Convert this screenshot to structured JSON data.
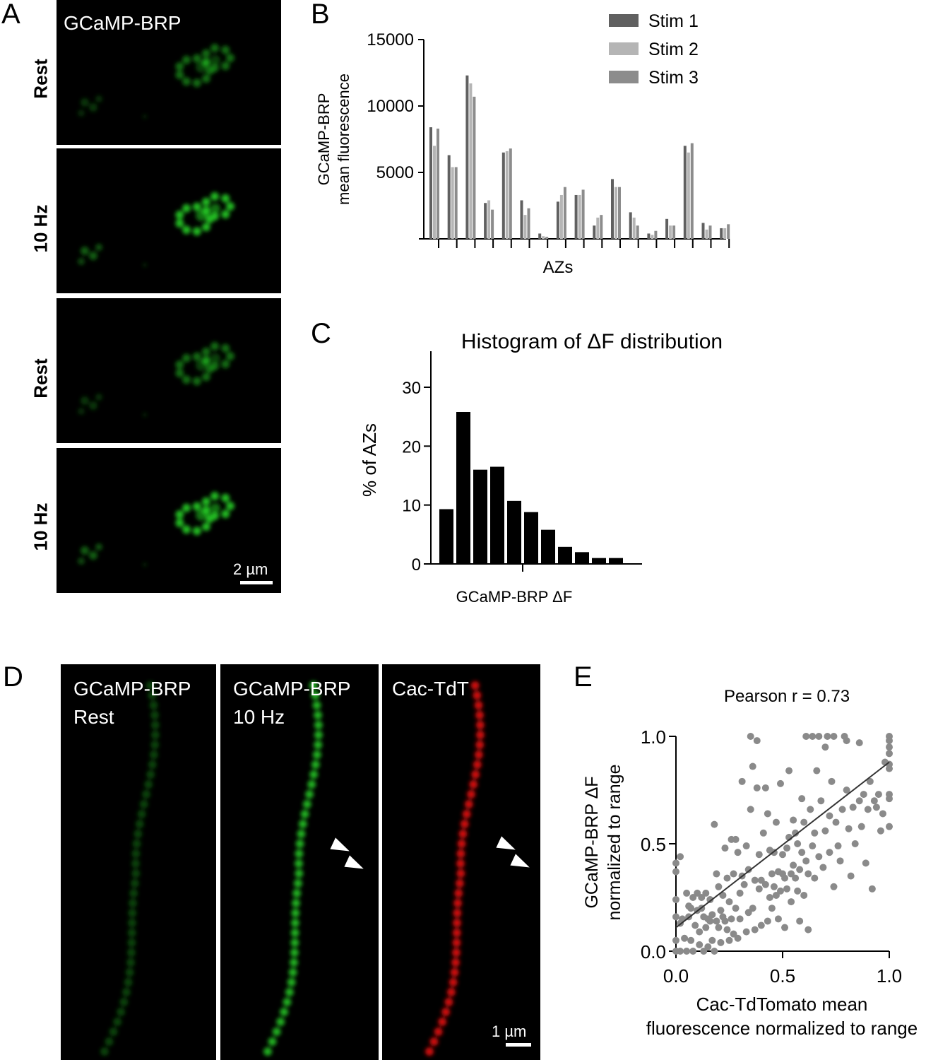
{
  "panelA": {
    "letter": "A",
    "header": "GCaMP-BRP",
    "rows": [
      "Rest",
      "10 Hz",
      "Rest",
      "10 Hz"
    ],
    "scale": "2 µm"
  },
  "panelD": {
    "letter": "D",
    "images": [
      {
        "line1": "GCaMP-BRP",
        "line2": "Rest"
      },
      {
        "line1": "GCaMP-BRP",
        "line2": "10 Hz"
      },
      {
        "line1": "Cac-TdT",
        "line2": ""
      }
    ],
    "scale": "1 µm"
  },
  "colors": {
    "green": "#22c322",
    "red": "#e01010",
    "scatter": "#8a8a8a"
  },
  "chart_data": [
    {
      "panel": "B",
      "type": "bar",
      "title": "",
      "xlabel": "AZs",
      "ylabel": [
        "GCaMP-BRP",
        "mean fluorescence"
      ],
      "ylim": [
        0,
        15000
      ],
      "yticks": [
        5000,
        10000,
        15000
      ],
      "legend_position": "top-right",
      "series": [
        {
          "name": "Stim 1",
          "color": "#606060",
          "values": [
            8400,
            6300,
            12300,
            2700,
            6500,
            2900,
            400,
            2800,
            3300,
            1000,
            4500,
            2000,
            400,
            1500,
            7000,
            1200,
            800
          ]
        },
        {
          "name": "Stim 2",
          "color": "#b5b5b5",
          "values": [
            7000,
            5400,
            11700,
            2900,
            6600,
            1800,
            200,
            3300,
            3300,
            1600,
            3900,
            1600,
            300,
            1000,
            6500,
            700,
            800
          ]
        },
        {
          "name": "Stim 3",
          "color": "#8c8c8c",
          "values": [
            8300,
            5400,
            10700,
            2200,
            6800,
            2300,
            150,
            3900,
            3700,
            1800,
            3900,
            1000,
            600,
            1000,
            7200,
            1000,
            1100
          ]
        }
      ]
    },
    {
      "panel": "C",
      "type": "bar",
      "title": "Histogram of ΔF distribution",
      "xlabel": "GCaMP-BRP ΔF",
      "ylabel": "% of AZs",
      "ylim": [
        0,
        36
      ],
      "yticks": [
        0,
        10,
        20,
        30
      ],
      "values": [
        9.3,
        25.8,
        16.0,
        16.5,
        10.7,
        8.8,
        5.8,
        2.9,
        2.0,
        1.0,
        1.0
      ]
    },
    {
      "panel": "E",
      "type": "scatter",
      "title": "Pearson r = 0.73",
      "xlabel": [
        "Cac-TdTomato mean",
        "fluorescence normalized to range"
      ],
      "ylabel": [
        "GCaMP-BRP  ΔF",
        "normalized to range"
      ],
      "xlim": [
        0,
        1
      ],
      "ylim": [
        0,
        1
      ],
      "xticks": [
        "0.0",
        "0.5",
        "1.0"
      ],
      "yticks": [
        "0.0",
        "0.5",
        "1.0"
      ],
      "fit_line": {
        "x": [
          0,
          1
        ],
        "y": [
          0.11,
          0.88
        ]
      },
      "points": [
        [
          0.0,
          0.0
        ],
        [
          0.0,
          0.05
        ],
        [
          0.0,
          0.16
        ],
        [
          0.0,
          0.24
        ],
        [
          0.0,
          0.37
        ],
        [
          0.0,
          0.41
        ],
        [
          0.02,
          0.0
        ],
        [
          0.02,
          0.13
        ],
        [
          0.02,
          0.44
        ],
        [
          0.03,
          0.15
        ],
        [
          0.04,
          0.06
        ],
        [
          0.05,
          0.0
        ],
        [
          0.05,
          0.27
        ],
        [
          0.06,
          0.21
        ],
        [
          0.06,
          0.16
        ],
        [
          0.07,
          0.2
        ],
        [
          0.07,
          0.05
        ],
        [
          0.08,
          0.0
        ],
        [
          0.08,
          0.25
        ],
        [
          0.09,
          0.12
        ],
        [
          0.1,
          0.19
        ],
        [
          0.1,
          0.27
        ],
        [
          0.11,
          0.03
        ],
        [
          0.11,
          0.09
        ],
        [
          0.12,
          0.2
        ],
        [
          0.12,
          0.25
        ],
        [
          0.13,
          0.0
        ],
        [
          0.13,
          0.16
        ],
        [
          0.14,
          0.11
        ],
        [
          0.14,
          0.27
        ],
        [
          0.15,
          0.02
        ],
        [
          0.15,
          0.15
        ],
        [
          0.16,
          0.14
        ],
        [
          0.16,
          0.24
        ],
        [
          0.17,
          0.05
        ],
        [
          0.17,
          0.17
        ],
        [
          0.18,
          0.59
        ],
        [
          0.18,
          0.0
        ],
        [
          0.19,
          0.14
        ],
        [
          0.19,
          0.36
        ],
        [
          0.2,
          0.11
        ],
        [
          0.2,
          0.3
        ],
        [
          0.21,
          0.19
        ],
        [
          0.21,
          0.04
        ],
        [
          0.22,
          0.16
        ],
        [
          0.22,
          0.26
        ],
        [
          0.23,
          0.14
        ],
        [
          0.23,
          0.48
        ],
        [
          0.24,
          0.1
        ],
        [
          0.24,
          0.34
        ],
        [
          0.25,
          0.05
        ],
        [
          0.25,
          0.23
        ],
        [
          0.26,
          0.15
        ],
        [
          0.26,
          0.52
        ],
        [
          0.27,
          0.08
        ],
        [
          0.27,
          0.36
        ],
        [
          0.28,
          0.2
        ],
        [
          0.28,
          0.52
        ],
        [
          0.29,
          0.06
        ],
        [
          0.29,
          0.46
        ],
        [
          0.3,
          0.27
        ],
        [
          0.3,
          0.15
        ],
        [
          0.31,
          0.79
        ],
        [
          0.31,
          0.35
        ],
        [
          0.32,
          0.31
        ],
        [
          0.33,
          0.49
        ],
        [
          0.33,
          0.09
        ],
        [
          0.34,
          0.38
        ],
        [
          0.34,
          0.18
        ],
        [
          0.35,
          1.0
        ],
        [
          0.35,
          0.66
        ],
        [
          0.36,
          0.86
        ],
        [
          0.36,
          0.2
        ],
        [
          0.37,
          0.33
        ],
        [
          0.37,
          0.1
        ],
        [
          0.38,
          0.98
        ],
        [
          0.38,
          0.76
        ],
        [
          0.39,
          0.29
        ],
        [
          0.39,
          0.45
        ],
        [
          0.4,
          0.33
        ],
        [
          0.4,
          0.12
        ],
        [
          0.41,
          0.55
        ],
        [
          0.42,
          0.76
        ],
        [
          0.42,
          0.31
        ],
        [
          0.43,
          0.14
        ],
        [
          0.43,
          0.64
        ],
        [
          0.44,
          0.47
        ],
        [
          0.44,
          0.25
        ],
        [
          0.45,
          0.36
        ],
        [
          0.45,
          0.2
        ],
        [
          0.46,
          0.3
        ],
        [
          0.46,
          0.46
        ],
        [
          0.47,
          0.26
        ],
        [
          0.47,
          0.6
        ],
        [
          0.48,
          0.37
        ],
        [
          0.48,
          0.15
        ],
        [
          0.49,
          0.78
        ],
        [
          0.49,
          0.28
        ],
        [
          0.5,
          0.36
        ],
        [
          0.5,
          0.45
        ],
        [
          0.51,
          0.34
        ],
        [
          0.51,
          0.11
        ],
        [
          0.52,
          0.48
        ],
        [
          0.52,
          0.29
        ],
        [
          0.53,
          0.84
        ],
        [
          0.53,
          0.53
        ],
        [
          0.54,
          0.36
        ],
        [
          0.54,
          0.23
        ],
        [
          0.55,
          0.61
        ],
        [
          0.55,
          0.4
        ],
        [
          0.56,
          0.34
        ],
        [
          0.56,
          0.55
        ],
        [
          0.57,
          0.5
        ],
        [
          0.57,
          0.28
        ],
        [
          0.58,
          0.38
        ],
        [
          0.58,
          0.14
        ],
        [
          0.59,
          0.71
        ],
        [
          0.59,
          0.46
        ],
        [
          0.6,
          0.6
        ],
        [
          0.6,
          0.26
        ],
        [
          0.61,
          1.0
        ],
        [
          0.61,
          0.42
        ],
        [
          0.62,
          0.36
        ],
        [
          0.62,
          0.1
        ],
        [
          0.63,
          0.66
        ],
        [
          0.64,
          1.0
        ],
        [
          0.64,
          0.49
        ],
        [
          0.65,
          0.55
        ],
        [
          0.65,
          0.34
        ],
        [
          0.66,
          0.84
        ],
        [
          0.67,
          1.0
        ],
        [
          0.67,
          0.44
        ],
        [
          0.68,
          0.7
        ],
        [
          0.69,
          0.39
        ],
        [
          0.7,
          0.95
        ],
        [
          0.7,
          0.56
        ],
        [
          0.71,
          1.0
        ],
        [
          0.72,
          0.63
        ],
        [
          0.72,
          0.46
        ],
        [
          0.73,
          0.79
        ],
        [
          0.74,
          1.0
        ],
        [
          0.74,
          0.3
        ],
        [
          0.75,
          0.6
        ],
        [
          0.76,
          0.49
        ],
        [
          0.77,
          0.42
        ],
        [
          0.78,
          0.66
        ],
        [
          0.79,
          1.0
        ],
        [
          0.8,
          0.98
        ],
        [
          0.8,
          0.75
        ],
        [
          0.81,
          0.57
        ],
        [
          0.82,
          0.35
        ],
        [
          0.83,
          0.67
        ],
        [
          0.84,
          0.5
        ],
        [
          0.86,
          0.97
        ],
        [
          0.86,
          0.7
        ],
        [
          0.87,
          0.58
        ],
        [
          0.88,
          0.73
        ],
        [
          0.89,
          0.41
        ],
        [
          0.9,
          0.66
        ],
        [
          0.91,
          0.79
        ],
        [
          0.92,
          0.29
        ],
        [
          0.93,
          0.7
        ],
        [
          0.94,
          0.67
        ],
        [
          0.95,
          0.73
        ],
        [
          0.96,
          0.56
        ],
        [
          0.97,
          0.64
        ],
        [
          0.98,
          0.88
        ],
        [
          1.0,
          1.0
        ],
        [
          1.0,
          0.98
        ],
        [
          1.0,
          0.95
        ],
        [
          1.0,
          0.92
        ],
        [
          1.0,
          0.87
        ],
        [
          1.0,
          0.85
        ],
        [
          1.0,
          0.73
        ],
        [
          1.0,
          0.71
        ],
        [
          1.0,
          0.58
        ]
      ]
    }
  ]
}
